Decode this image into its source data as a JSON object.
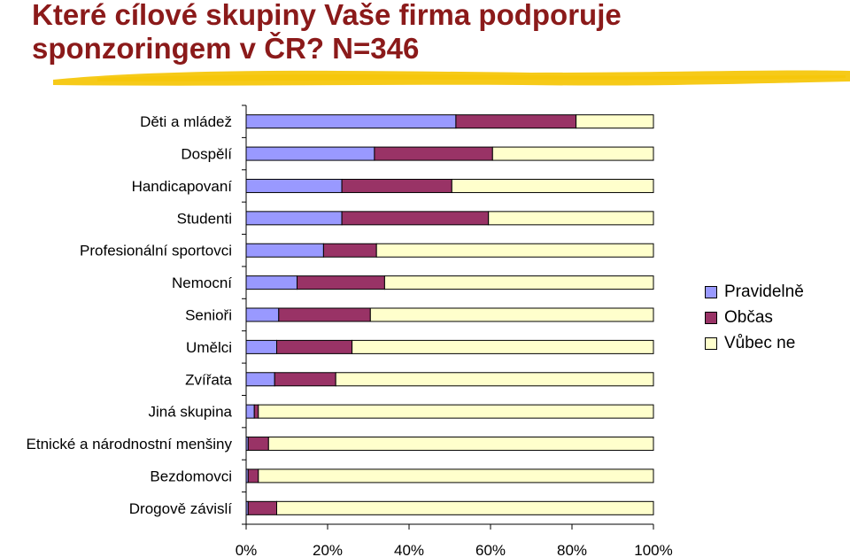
{
  "title": {
    "line1": "Které cílové skupiny Vaše firma podporuje",
    "line2": "sponzoringem v ČR? N=346"
  },
  "colors": {
    "title": "#8b1a1a",
    "highlight": "#f5c400",
    "pravidelne": "#9999ff",
    "obcas": "#993366",
    "vubec_ne": "#ffffcc"
  },
  "chart_data": {
    "type": "bar",
    "orientation": "horizontal",
    "stacked": "percent",
    "categories": [
      "Děti a mládež",
      "Dospělí",
      "Handicapovaní",
      "Studenti",
      "Profesionální sportovci",
      "Nemocní",
      "Senioři",
      "Umělci",
      "Zvířata",
      "Jiná skupina",
      "Etnické a národnostní menšiny",
      "Bezdomovci",
      "Drogově závislí"
    ],
    "series": [
      {
        "name": "Pravidelně",
        "color": "#9999ff",
        "values": [
          51.5,
          31.5,
          23.5,
          23.5,
          19,
          12.5,
          8,
          7.5,
          7,
          2,
          0.5,
          0.5,
          0.5
        ]
      },
      {
        "name": "Občas",
        "color": "#993366",
        "values": [
          29.5,
          29,
          27,
          36,
          13,
          21.5,
          22.5,
          18.5,
          15,
          1,
          5,
          2.5,
          7
        ]
      },
      {
        "name": "Vůbec ne",
        "color": "#ffffcc",
        "values": [
          19,
          39.5,
          49.5,
          40.5,
          68,
          66,
          69.5,
          74,
          78,
          97,
          94.5,
          97,
          92.5
        ]
      }
    ],
    "xlim": [
      0,
      100
    ],
    "xticks": [
      "0%",
      "20%",
      "40%",
      "60%",
      "80%",
      "100%"
    ],
    "legend_position": "right"
  }
}
